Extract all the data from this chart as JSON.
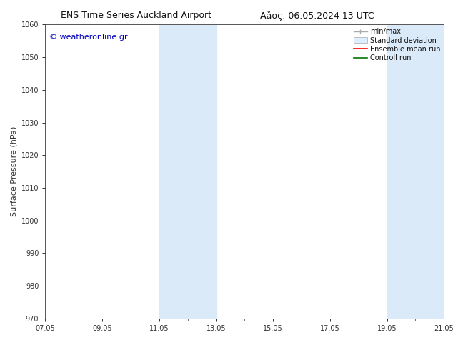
{
  "title": "ENS Time Series Auckland Airport",
  "title2": "Äåος. 06.05.2024 13 UTC",
  "ylabel": "Surface Pressure (hPa)",
  "ylim": [
    970,
    1060
  ],
  "yticks": [
    970,
    980,
    990,
    1000,
    1010,
    1020,
    1030,
    1040,
    1050,
    1060
  ],
  "xticks": [
    "07.05",
    "09.05",
    "11.05",
    "13.05",
    "15.05",
    "17.05",
    "19.05",
    "21.05"
  ],
  "xtick_positions": [
    0,
    2,
    4,
    6,
    8,
    10,
    12,
    14
  ],
  "xlim": [
    0,
    14
  ],
  "shaded_regions": [
    {
      "x_start": 4,
      "x_end": 6
    },
    {
      "x_start": 12,
      "x_end": 14
    }
  ],
  "shaded_color": "#daeaf8",
  "watermark_text": "© weatheronline.gr",
  "watermark_color": "#0000bb",
  "bg_color": "#ffffff",
  "plot_bg_color": "#ffffff",
  "font_size_title": 9,
  "font_size_axis": 8,
  "font_size_tick": 7,
  "font_size_legend": 7,
  "font_size_watermark": 8,
  "spine_color": "#555555",
  "tick_color": "#333333",
  "legend_color_minmax": "#aaaaaa",
  "legend_color_stddev": "#ddeeff",
  "legend_color_ensemble": "#ff0000",
  "legend_color_control": "#007700"
}
